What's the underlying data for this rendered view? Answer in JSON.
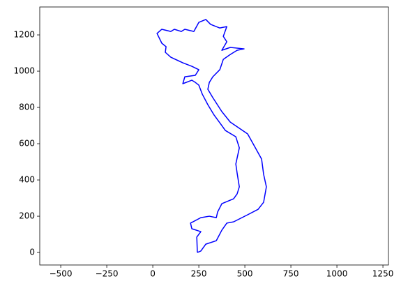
{
  "chart_data": {
    "type": "line",
    "color": "#0000ff",
    "x": [
      242,
      239,
      261,
      212,
      205,
      261,
      307,
      345,
      352,
      375,
      439,
      458,
      470,
      458,
      451,
      470,
      451,
      394,
      375,
      333,
      299,
      269,
      250,
      231,
      212,
      163,
      174,
      231,
      250,
      212,
      163,
      98,
      68,
      72,
      49,
      23,
      49,
      98,
      117,
      155,
      174,
      223,
      250,
      288,
      314,
      364,
      402,
      383,
      402,
      375,
      421,
      496,
      458,
      421,
      383,
      364,
      326,
      307,
      299,
      326,
      375,
      421,
      515,
      553,
      591,
      602,
      617,
      602,
      572,
      515,
      439,
      402,
      375,
      345,
      288,
      261,
      242
    ],
    "values": [
      0,
      85,
      115,
      131,
      162,
      192,
      200,
      192,
      223,
      269,
      296,
      323,
      362,
      438,
      488,
      577,
      638,
      673,
      700,
      758,
      815,
      873,
      923,
      938,
      950,
      931,
      969,
      977,
      1008,
      1027,
      1046,
      1077,
      1104,
      1135,
      1154,
      1208,
      1231,
      1219,
      1231,
      1219,
      1231,
      1219,
      1269,
      1285,
      1258,
      1238,
      1246,
      1192,
      1162,
      1115,
      1131,
      1123,
      1115,
      1092,
      1065,
      1008,
      969,
      938,
      900,
      854,
      777,
      719,
      654,
      585,
      515,
      431,
      362,
      277,
      238,
      208,
      169,
      162,
      123,
      65,
      46,
      8,
      0
    ],
    "xlim": [
      -614,
      1280
    ],
    "ylim": [
      -69,
      1354
    ],
    "xticks": [
      {
        "value": -500,
        "label": "−500"
      },
      {
        "value": -250,
        "label": "−250"
      },
      0,
      250,
      500,
      750,
      1000,
      1250
    ],
    "yticks": [
      0,
      200,
      400,
      600,
      800,
      1000,
      1200
    ]
  }
}
